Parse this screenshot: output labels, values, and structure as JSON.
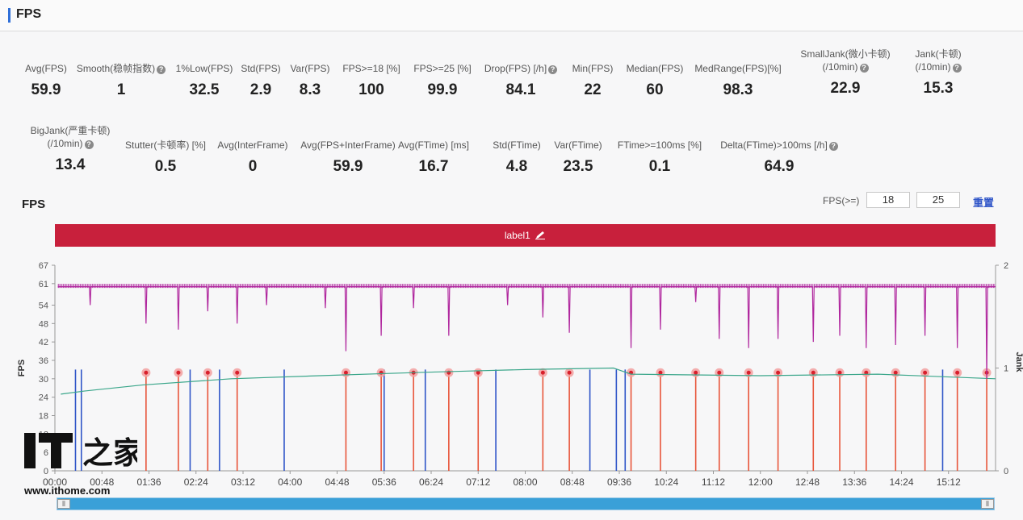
{
  "header": {
    "title": "FPS"
  },
  "stats_row1": [
    {
      "label": "Avg(FPS)",
      "value": "59.9",
      "help": false
    },
    {
      "label": "Smooth(稳帧指数)",
      "value": "1",
      "help": true
    },
    {
      "label": "1%Low(FPS)",
      "value": "32.5",
      "help": false
    },
    {
      "label": "Std(FPS)",
      "value": "2.9",
      "help": false
    },
    {
      "label": "Var(FPS)",
      "value": "8.3",
      "help": false
    },
    {
      "label": "FPS>=18 [%]",
      "value": "100",
      "help": false
    },
    {
      "label": "FPS>=25 [%]",
      "value": "99.9",
      "help": false
    },
    {
      "label": "Drop(FPS) [/h]",
      "value": "84.1",
      "help": true
    },
    {
      "label": "Min(FPS)",
      "value": "22",
      "help": false
    },
    {
      "label": "Median(FPS)",
      "value": "60",
      "help": false
    },
    {
      "label": "MedRange(FPS)[%]",
      "value": "98.3",
      "help": false
    },
    {
      "label": "SmallJank(微小卡顿)",
      "label2": "(/10min)",
      "value": "22.9",
      "help": true
    },
    {
      "label": "Jank(卡顿)",
      "label2": "(/10min)",
      "value": "15.3",
      "help": true
    }
  ],
  "stats_row2": [
    {
      "label": "BigJank(严重卡顿)",
      "label2": "(/10min)",
      "value": "13.4",
      "help": true
    },
    {
      "label": "Stutter(卡顿率) [%]",
      "value": "0.5",
      "help": false
    },
    {
      "label": "Avg(InterFrame)",
      "value": "0",
      "help": false
    },
    {
      "label": "Avg(FPS+InterFrame)",
      "value": "59.9",
      "help": false
    },
    {
      "label": "Avg(FTime) [ms]",
      "value": "16.7",
      "help": false
    },
    {
      "label": "Std(FTime)",
      "value": "4.8",
      "help": false
    },
    {
      "label": "Var(FTime)",
      "value": "23.5",
      "help": false
    },
    {
      "label": "FTime>=100ms [%]",
      "value": "0.1",
      "help": false
    },
    {
      "label": "Delta(FTime)>100ms [/h]",
      "value": "64.9",
      "help": true
    }
  ],
  "chart_section": {
    "title": "FPS",
    "threshold_label": "FPS(>=)",
    "threshold_1": "18",
    "threshold_2": "25",
    "reset_label": "重置",
    "band_label": "label1"
  },
  "colors": {
    "fps": "#b0279e",
    "jank": "#e8553a",
    "bigjank": "#2f55c8",
    "avg": "#3aa68a",
    "label_band": "#c8203c"
  },
  "chart_data": {
    "type": "line",
    "ylabel": "FPS",
    "y2label": "Jank",
    "ylim": [
      0,
      67
    ],
    "yticks": [
      0,
      6,
      12,
      18,
      24,
      30,
      36,
      42,
      48,
      54,
      61,
      67
    ],
    "y2lim": [
      0,
      2
    ],
    "y2ticks": [
      0,
      1,
      2
    ],
    "xticks": [
      "00:00",
      "00:48",
      "01:36",
      "02:24",
      "03:12",
      "04:00",
      "04:48",
      "05:36",
      "06:24",
      "07:12",
      "08:00",
      "08:48",
      "09:36",
      "10:24",
      "11:12",
      "12:00",
      "12:48",
      "13:36",
      "14:24",
      "15:12"
    ],
    "x_range_minutes": [
      0,
      16
    ],
    "fps_baseline": 60,
    "fps_dips": [
      {
        "t": 0.6,
        "v": 54
      },
      {
        "t": 1.55,
        "v": 48
      },
      {
        "t": 2.1,
        "v": 46
      },
      {
        "t": 2.6,
        "v": 52
      },
      {
        "t": 3.1,
        "v": 48
      },
      {
        "t": 3.6,
        "v": 54
      },
      {
        "t": 4.6,
        "v": 53
      },
      {
        "t": 4.95,
        "v": 39
      },
      {
        "t": 5.55,
        "v": 44
      },
      {
        "t": 6.1,
        "v": 53
      },
      {
        "t": 6.7,
        "v": 44
      },
      {
        "t": 7.7,
        "v": 54
      },
      {
        "t": 8.3,
        "v": 50
      },
      {
        "t": 8.75,
        "v": 45
      },
      {
        "t": 9.8,
        "v": 40
      },
      {
        "t": 10.3,
        "v": 46
      },
      {
        "t": 10.9,
        "v": 55
      },
      {
        "t": 11.3,
        "v": 43
      },
      {
        "t": 11.8,
        "v": 40
      },
      {
        "t": 12.3,
        "v": 43
      },
      {
        "t": 12.9,
        "v": 42
      },
      {
        "t": 13.35,
        "v": 44
      },
      {
        "t": 13.8,
        "v": 40
      },
      {
        "t": 14.3,
        "v": 41
      },
      {
        "t": 14.8,
        "v": 44
      },
      {
        "t": 15.35,
        "v": 40
      },
      {
        "t": 15.85,
        "v": 30
      }
    ],
    "jank_events": [
      1.55,
      2.1,
      2.6,
      3.1,
      4.95,
      5.55,
      6.1,
      6.7,
      7.2,
      8.3,
      8.75,
      9.8,
      10.3,
      10.9,
      11.3,
      11.8,
      12.3,
      12.9,
      13.35,
      13.8,
      14.3,
      14.8,
      15.35,
      15.85
    ],
    "bigjank_events": [
      0.35,
      0.45,
      2.3,
      2.8,
      3.9,
      5.6,
      6.3,
      7.5,
      9.1,
      9.55,
      9.7,
      15.1
    ],
    "avg_line": [
      {
        "t": 0.1,
        "v": 25
      },
      {
        "t": 0.5,
        "v": 26
      },
      {
        "t": 1.5,
        "v": 28
      },
      {
        "t": 3.0,
        "v": 30
      },
      {
        "t": 4.5,
        "v": 31
      },
      {
        "t": 6.1,
        "v": 32
      },
      {
        "t": 7.0,
        "v": 32.5
      },
      {
        "t": 8.0,
        "v": 33
      },
      {
        "t": 9.5,
        "v": 33.5
      },
      {
        "t": 9.8,
        "v": 31.5
      },
      {
        "t": 12.0,
        "v": 31
      },
      {
        "t": 14.0,
        "v": 31.5
      },
      {
        "t": 16.0,
        "v": 30
      }
    ]
  },
  "watermark": {
    "logo": "IT之家",
    "url": "www.ithome.com"
  }
}
